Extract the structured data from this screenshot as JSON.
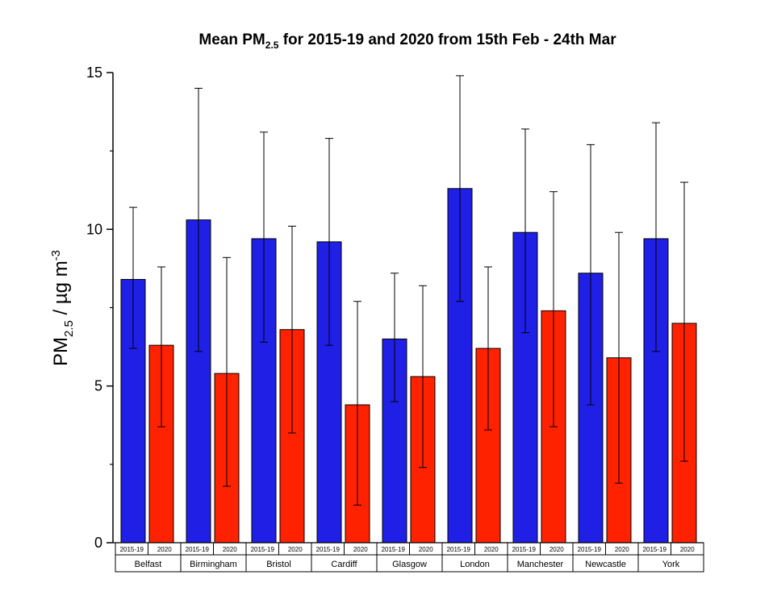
{
  "chart_data": {
    "type": "bar",
    "title_prefix": "Mean PM",
    "title_sub": "2.5",
    "title_suffix": " for 2015-19 and 2020 from 15th Feb - 24th Mar",
    "ylabel_prefix": "PM",
    "ylabel_sub": "2.5",
    "ylabel_mid": " / µg m",
    "ylabel_sup": "-3",
    "ylim": [
      0,
      15
    ],
    "yticks": [
      0,
      5,
      10,
      15
    ],
    "categories": [
      "Belfast",
      "Birmingham",
      "Bristol",
      "Cardiff",
      "Glasgow",
      "London",
      "Manchester",
      "Newcastle",
      "York"
    ],
    "series": [
      {
        "name": "2015-19",
        "color": "#1f1fe6",
        "values": [
          8.4,
          10.3,
          9.7,
          9.6,
          6.5,
          11.3,
          9.9,
          8.6,
          9.7
        ],
        "err_low": [
          6.2,
          6.1,
          6.4,
          6.3,
          4.5,
          7.7,
          6.7,
          4.4,
          6.1
        ],
        "err_high": [
          10.7,
          14.5,
          13.1,
          12.9,
          8.6,
          14.9,
          13.2,
          12.7,
          13.4
        ]
      },
      {
        "name": "2020",
        "color": "#ff2200",
        "values": [
          6.3,
          5.4,
          6.8,
          4.4,
          5.3,
          6.2,
          7.4,
          5.9,
          7.0
        ],
        "err_low": [
          3.7,
          1.8,
          3.5,
          1.2,
          2.4,
          3.6,
          3.7,
          1.9,
          2.6
        ],
        "err_high": [
          8.8,
          9.1,
          10.1,
          7.7,
          8.2,
          8.8,
          11.2,
          9.9,
          11.5
        ]
      }
    ]
  }
}
